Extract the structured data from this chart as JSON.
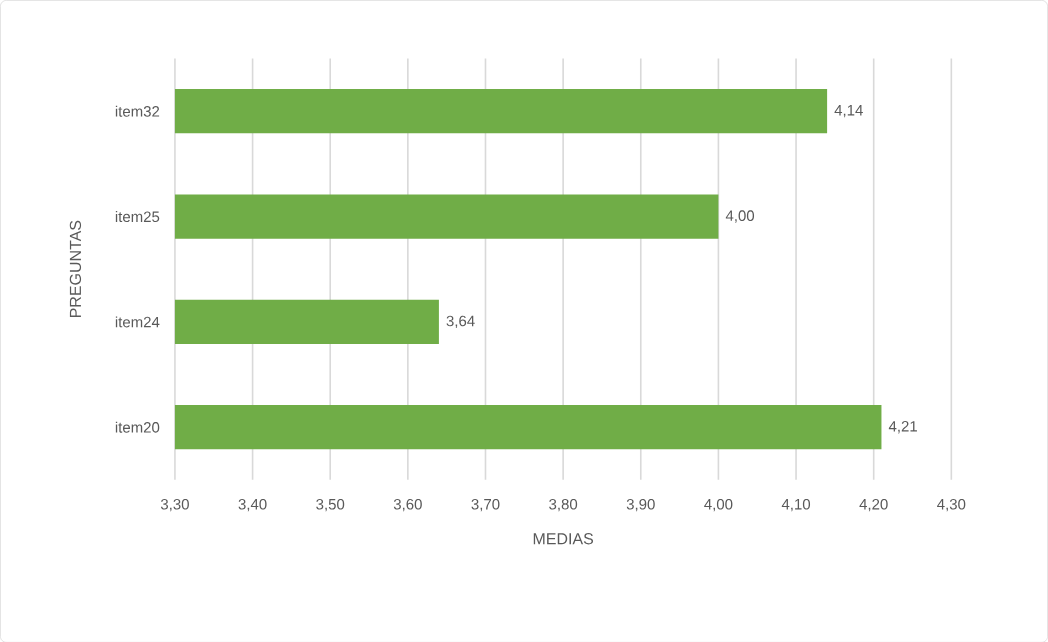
{
  "chart_data": {
    "type": "bar",
    "orientation": "horizontal",
    "categories": [
      "item32",
      "item25",
      "item24",
      "item20"
    ],
    "values": [
      4.14,
      4.0,
      3.64,
      4.21
    ],
    "value_labels": [
      "4,14",
      "4,00",
      "3,64",
      "4,21"
    ],
    "color": "#70ad47",
    "xlabel": "MEDIAS",
    "ylabel": "PREGUNTAS",
    "xlim": [
      3.3,
      4.3
    ],
    "xticks": [
      {
        "value": 3.3,
        "label": "3,30"
      },
      {
        "value": 3.4,
        "label": "3,40"
      },
      {
        "value": 3.5,
        "label": "3,50"
      },
      {
        "value": 3.6,
        "label": "3,60"
      },
      {
        "value": 3.7,
        "label": "3,70"
      },
      {
        "value": 3.8,
        "label": "3,80"
      },
      {
        "value": 3.9,
        "label": "3,90"
      },
      {
        "value": 4.0,
        "label": "4,00"
      },
      {
        "value": 4.1,
        "label": "4,10"
      },
      {
        "value": 4.2,
        "label": "4,20"
      },
      {
        "value": 4.3,
        "label": "4,30"
      }
    ],
    "grid": "x"
  }
}
